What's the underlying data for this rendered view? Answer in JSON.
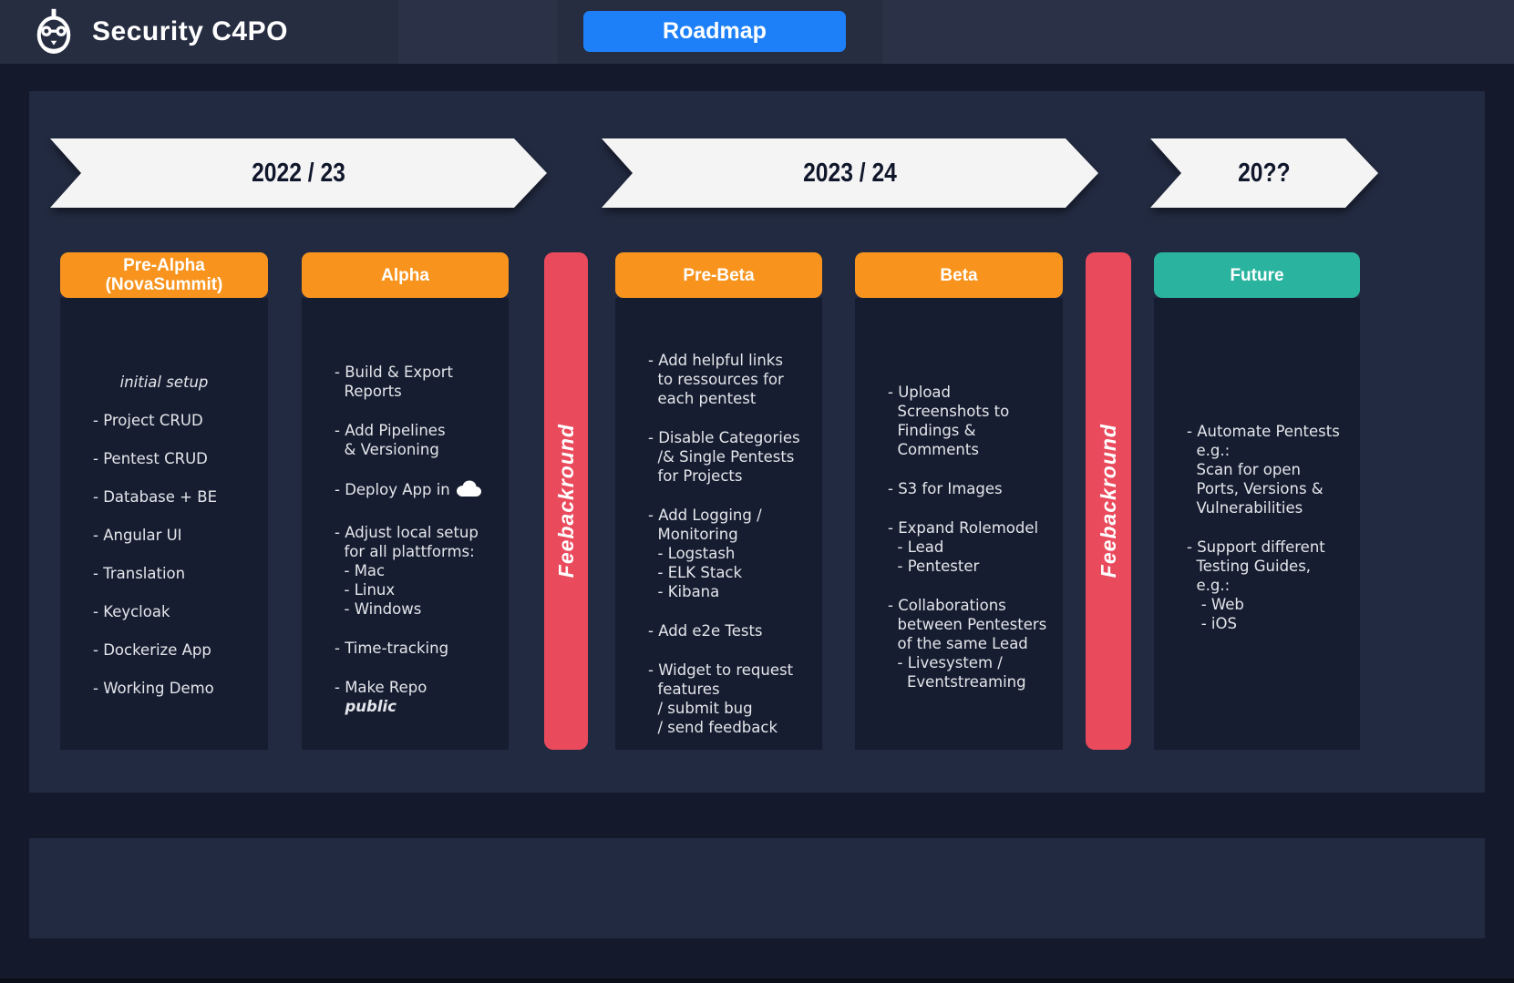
{
  "header": {
    "title": "Security C4PO",
    "nav_button": "Roadmap"
  },
  "timeline": [
    {
      "label": "2022 / 23"
    },
    {
      "label": "2023 / 24"
    },
    {
      "label": "20??"
    }
  ],
  "colors": {
    "accent_orange": "#f8941e",
    "accent_teal": "#2ab4a0",
    "feedback_red": "#e94a5c",
    "nav_blue": "#1e80f8",
    "arrow_light": "#f4f4f5"
  },
  "icons": {
    "robot-logo-icon": "robot-head",
    "cloud-icon": "cloud"
  },
  "phase_strip": [
    {
      "type": "phase",
      "key": "pre-alpha",
      "title": "Pre-Alpha\n(NovaSummit)",
      "accent": "accent_orange",
      "blocks": [
        {
          "lines": [
            {
              "text": "initial setup",
              "style": "italic",
              "align": "center"
            }
          ]
        },
        {
          "lines": [
            "- Project CRUD"
          ]
        },
        {
          "lines": [
            "- Pentest CRUD"
          ]
        },
        {
          "lines": [
            "- Database + BE"
          ]
        },
        {
          "lines": [
            "- Angular UI"
          ]
        },
        {
          "lines": [
            "- Translation"
          ]
        },
        {
          "lines": [
            "- Keycloak"
          ]
        },
        {
          "lines": [
            "- Dockerize App"
          ]
        },
        {
          "lines": [
            "- Working Demo"
          ]
        }
      ]
    },
    {
      "type": "phase",
      "key": "alpha",
      "title": "Alpha",
      "accent": "accent_orange",
      "blocks": [
        {
          "lines": [
            "- Build & Export",
            "  Reports"
          ]
        },
        {
          "lines": [
            "- Add Pipelines",
            "  & Versioning"
          ]
        },
        {
          "lines": [
            {
              "text": "- Deploy App in",
              "icon": "cloud-icon"
            }
          ]
        },
        {
          "lines": [
            "- Adjust local setup",
            "  for all plattforms:",
            "  - Mac",
            "  - Linux",
            "  - Windows"
          ]
        },
        {
          "lines": [
            "- Time-tracking"
          ]
        },
        {
          "lines": [
            "- Make Repo",
            {
              "text": "  public",
              "style": "bolditalic"
            }
          ]
        }
      ]
    },
    {
      "type": "feedback",
      "key": "feedback-1",
      "label": "Feebackround"
    },
    {
      "type": "phase",
      "key": "pre-beta",
      "title": "Pre-Beta",
      "accent": "accent_orange",
      "blocks": [
        {
          "lines": [
            "- Add helpful links",
            "  to ressources for",
            "  each pentest"
          ]
        },
        {
          "lines": [
            "- Disable Categories",
            "  /& Single Pentests",
            "  for Projects"
          ]
        },
        {
          "lines": [
            "- Add Logging /",
            "  Monitoring",
            "  - Logstash",
            "  - ELK Stack",
            "  - Kibana"
          ]
        },
        {
          "lines": [
            "- Add e2e Tests"
          ]
        },
        {
          "lines": [
            "- Widget to request",
            "  features",
            "  / submit bug",
            "  / send feedback"
          ]
        }
      ]
    },
    {
      "type": "phase",
      "key": "beta",
      "title": "Beta",
      "accent": "accent_orange",
      "blocks": [
        {
          "lines": [
            "- Upload",
            "  Screenshots to",
            "  Findings &",
            "  Comments"
          ]
        },
        {
          "lines": [
            "- S3 for Images"
          ]
        },
        {
          "lines": [
            "- Expand Rolemodel",
            "  - Lead",
            "  - Pentester"
          ]
        },
        {
          "lines": [
            "- Collaborations",
            "  between Pentesters",
            "  of the same Lead",
            "  - Livesystem /",
            "    Eventstreaming"
          ]
        }
      ]
    },
    {
      "type": "feedback",
      "key": "feedback-2",
      "label": "Feebackround"
    },
    {
      "type": "phase",
      "key": "future",
      "title": "Future",
      "accent": "accent_teal",
      "blocks": [
        {
          "lines": [
            "- Automate Pentests",
            "  e.g.:",
            "  Scan for open",
            "  Ports, Versions &",
            "  Vulnerabilities"
          ]
        },
        {
          "lines": [
            "- Support different",
            "  Testing Guides,",
            "  e.g.:",
            "   - Web",
            "   - iOS"
          ]
        }
      ]
    }
  ]
}
